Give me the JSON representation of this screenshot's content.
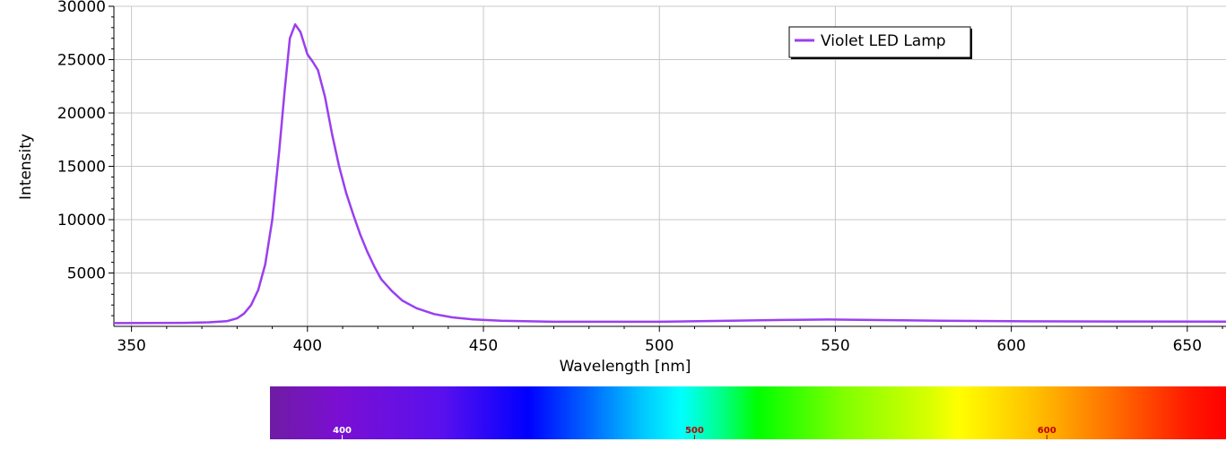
{
  "chart_data": {
    "type": "line",
    "xlabel": "Wavelength [nm]",
    "ylabel": "Intensity",
    "xlim": [
      345,
      661
    ],
    "ylim": [
      0,
      30000
    ],
    "x_ticks": [
      "350",
      "400",
      "450",
      "500",
      "550",
      "600",
      "650"
    ],
    "y_ticks": [
      "5000",
      "10000",
      "15000",
      "20000",
      "25000",
      "30000"
    ],
    "grid": true,
    "legend_position": "top-right",
    "series": [
      {
        "name": "Violet LED Lamp",
        "color": "#9a3ff0",
        "points": [
          [
            345,
            300
          ],
          [
            355,
            310
          ],
          [
            365,
            330
          ],
          [
            372,
            380
          ],
          [
            377,
            480
          ],
          [
            380,
            750
          ],
          [
            382,
            1200
          ],
          [
            384,
            2000
          ],
          [
            386,
            3400
          ],
          [
            388,
            5800
          ],
          [
            390,
            10000
          ],
          [
            392,
            16500
          ],
          [
            393.5,
            22000
          ],
          [
            395,
            27000
          ],
          [
            396.5,
            28300
          ],
          [
            398,
            27600
          ],
          [
            400,
            25500
          ],
          [
            401.5,
            24800
          ],
          [
            403,
            24000
          ],
          [
            405,
            21500
          ],
          [
            407,
            18000
          ],
          [
            409,
            15000
          ],
          [
            411,
            12500
          ],
          [
            413,
            10500
          ],
          [
            415,
            8600
          ],
          [
            417,
            7000
          ],
          [
            419,
            5600
          ],
          [
            421,
            4400
          ],
          [
            424,
            3300
          ],
          [
            427,
            2400
          ],
          [
            431,
            1700
          ],
          [
            436,
            1150
          ],
          [
            441,
            850
          ],
          [
            447,
            650
          ],
          [
            455,
            520
          ],
          [
            470,
            430
          ],
          [
            500,
            430
          ],
          [
            520,
            530
          ],
          [
            535,
            600
          ],
          [
            548,
            640
          ],
          [
            560,
            600
          ],
          [
            580,
            520
          ],
          [
            600,
            480
          ],
          [
            630,
            450
          ],
          [
            661,
            440
          ]
        ]
      }
    ]
  },
  "spectrum_bar": {
    "labels": [
      {
        "text": "400",
        "nm": 400
      },
      {
        "text": "500",
        "nm": 500
      },
      {
        "text": "600",
        "nm": 600
      }
    ],
    "range_nm": [
      380,
      650
    ]
  }
}
